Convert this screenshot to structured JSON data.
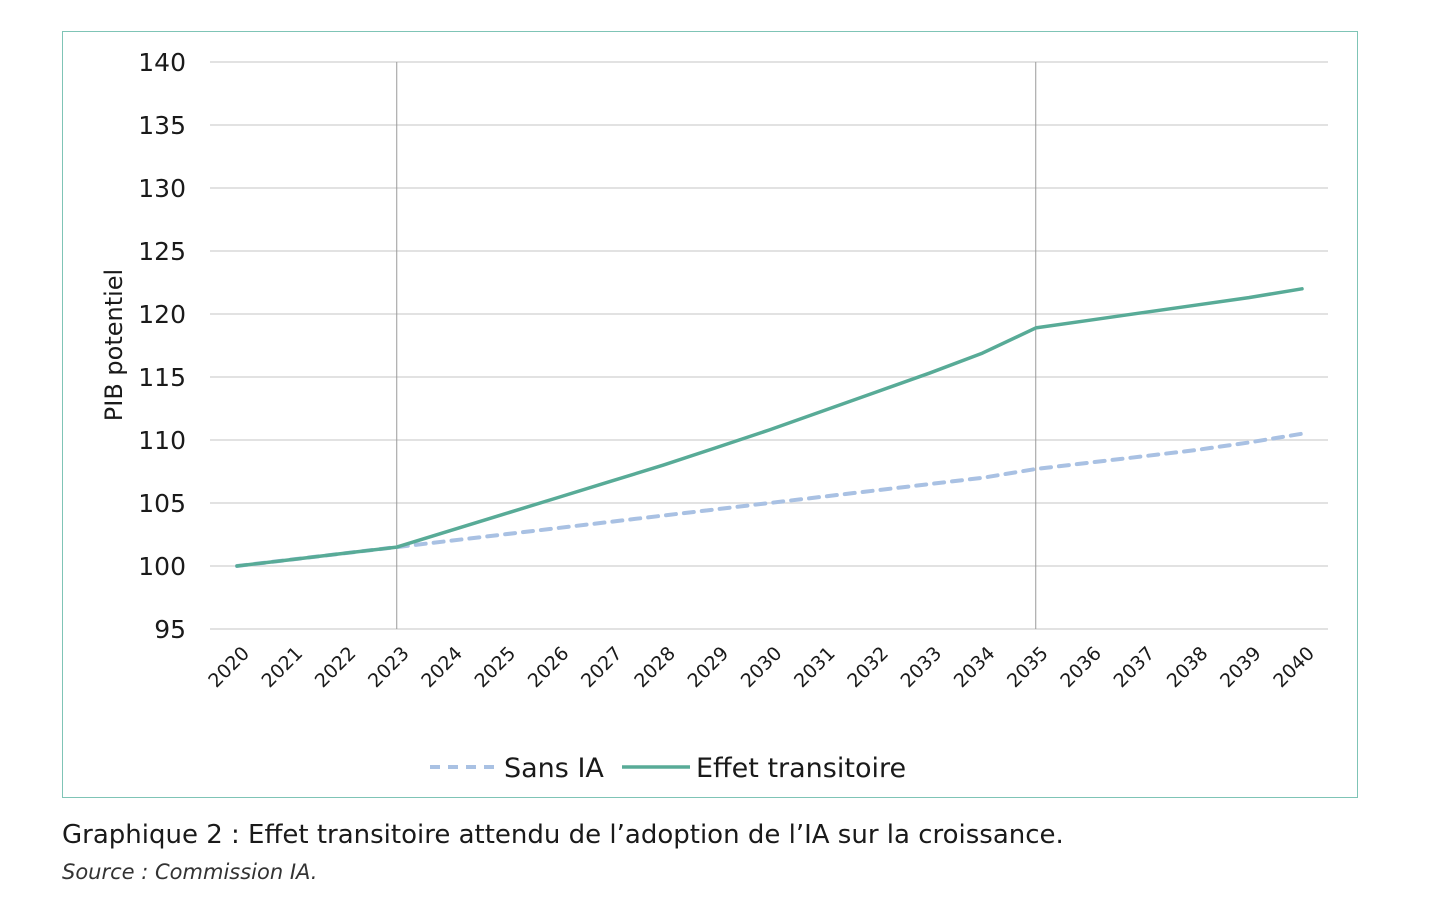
{
  "chart_data": {
    "type": "line",
    "x": [
      "2020",
      "2021",
      "2022",
      "2023",
      "2024",
      "2025",
      "2026",
      "2027",
      "2028",
      "2029",
      "2030",
      "2031",
      "2032",
      "2033",
      "2034",
      "2035",
      "2036",
      "2037",
      "2038",
      "2039",
      "2040"
    ],
    "ylabel": "PIB potentiel",
    "xlabel": "",
    "ylim": [
      95,
      140
    ],
    "yticks": [
      95,
      100,
      105,
      110,
      115,
      120,
      125,
      130,
      135,
      140
    ],
    "vlines": [
      "2023",
      "2035"
    ],
    "grid": true,
    "legend_position": "bottom",
    "series": [
      {
        "name": "Sans IA",
        "style": "dashed",
        "color": "#a9c1e3",
        "values": [
          100.0,
          100.5,
          101.0,
          101.5,
          102.0,
          102.5,
          103.0,
          103.5,
          104.0,
          104.5,
          105.0,
          105.5,
          106.0,
          106.5,
          107.0,
          107.7,
          108.2,
          108.7,
          109.2,
          109.8,
          110.5
        ]
      },
      {
        "name": "Effet transitoire",
        "style": "solid",
        "color": "#58ab97",
        "values": [
          100.0,
          100.5,
          101.0,
          101.5,
          102.8,
          104.1,
          105.4,
          106.7,
          108.0,
          109.4,
          110.8,
          112.3,
          113.8,
          115.3,
          116.9,
          118.9,
          119.5,
          120.1,
          120.7,
          121.3,
          122.0
        ]
      }
    ]
  },
  "caption": {
    "title": "Graphique 2 : Effet transitoire attendu de l’adoption de l’IA sur la croissance.",
    "source": "Source : Commission IA."
  }
}
